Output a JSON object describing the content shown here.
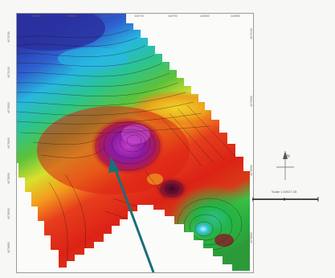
{
  "map": {
    "scale_label": "Scale 1:10027.33",
    "x_ticks": [
      "440550",
      "440600",
      "440650",
      "440700",
      "440750",
      "440800",
      "440850"
    ],
    "y_ticks": [
      "4079150",
      "4079100",
      "4079050",
      "4079000",
      "4078950",
      "4078900",
      "4078850"
    ],
    "icons": {
      "north_arrow": "north-arrow-icon",
      "pointer_arrow": "pointer-arrow-icon"
    },
    "colors": {
      "low": "#1f2f9a",
      "mid": "#22b03a",
      "high": "#d81616",
      "peak": "#8a1a9a",
      "arrow": "#1a6f78"
    }
  }
}
